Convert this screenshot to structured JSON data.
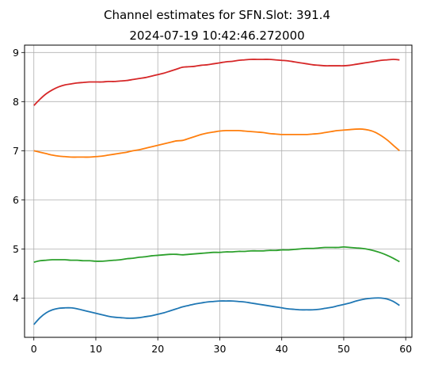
{
  "chart_data": {
    "type": "line",
    "title": "Channel estimates for SFN.Slot: 391.4",
    "subtitle": "2024-07-19 10:42:46.272000",
    "xlabel": "",
    "ylabel": "",
    "xlim": [
      -1.5,
      61
    ],
    "ylim": [
      3.2,
      9.15
    ],
    "xticks": [
      0,
      10,
      20,
      30,
      40,
      50,
      60
    ],
    "yticks": [
      4,
      5,
      6,
      7,
      8,
      9
    ],
    "grid": true,
    "legend": "none",
    "series": [
      {
        "color": "#1f77b4",
        "x": [
          0,
          1,
          2,
          3,
          4,
          5,
          6,
          7,
          8,
          9,
          10,
          11,
          12,
          13,
          14,
          15,
          16,
          17,
          18,
          19,
          20,
          21,
          22,
          23,
          24,
          25,
          26,
          27,
          28,
          29,
          30,
          31,
          32,
          33,
          34,
          35,
          36,
          37,
          38,
          39,
          40,
          41,
          42,
          43,
          44,
          45,
          46,
          47,
          48,
          49,
          50,
          51,
          52,
          53,
          54,
          55,
          56,
          57,
          58,
          59
        ],
        "y": [
          3.46,
          3.6,
          3.7,
          3.76,
          3.79,
          3.8,
          3.8,
          3.78,
          3.75,
          3.72,
          3.69,
          3.66,
          3.63,
          3.61,
          3.6,
          3.59,
          3.59,
          3.6,
          3.62,
          3.64,
          3.67,
          3.7,
          3.74,
          3.78,
          3.82,
          3.85,
          3.88,
          3.9,
          3.92,
          3.93,
          3.94,
          3.94,
          3.94,
          3.93,
          3.92,
          3.9,
          3.88,
          3.86,
          3.84,
          3.82,
          3.8,
          3.78,
          3.77,
          3.76,
          3.76,
          3.76,
          3.77,
          3.79,
          3.81,
          3.84,
          3.87,
          3.9,
          3.94,
          3.97,
          3.99,
          4.0,
          4.0,
          3.98,
          3.93,
          3.85
        ]
      },
      {
        "color": "#ff7f0e",
        "x": [
          0,
          1,
          2,
          3,
          4,
          5,
          6,
          7,
          8,
          9,
          10,
          11,
          12,
          13,
          14,
          15,
          16,
          17,
          18,
          19,
          20,
          21,
          22,
          23,
          24,
          25,
          26,
          27,
          28,
          29,
          30,
          31,
          32,
          33,
          34,
          35,
          36,
          37,
          38,
          39,
          40,
          41,
          42,
          43,
          44,
          45,
          46,
          47,
          48,
          49,
          50,
          51,
          52,
          53,
          54,
          55,
          56,
          57,
          58,
          59
        ],
        "y": [
          7.0,
          6.97,
          6.94,
          6.91,
          6.89,
          6.88,
          6.87,
          6.87,
          6.87,
          6.87,
          6.88,
          6.89,
          6.91,
          6.93,
          6.95,
          6.97,
          7.0,
          7.02,
          7.05,
          7.08,
          7.11,
          7.14,
          7.17,
          7.2,
          7.21,
          7.25,
          7.29,
          7.33,
          7.36,
          7.38,
          7.4,
          7.41,
          7.41,
          7.41,
          7.4,
          7.39,
          7.38,
          7.37,
          7.35,
          7.34,
          7.33,
          7.33,
          7.33,
          7.33,
          7.33,
          7.34,
          7.35,
          7.37,
          7.39,
          7.41,
          7.42,
          7.43,
          7.44,
          7.44,
          7.42,
          7.38,
          7.31,
          7.22,
          7.11,
          7.0
        ]
      },
      {
        "color": "#2ca02c",
        "x": [
          0,
          1,
          2,
          3,
          4,
          5,
          6,
          7,
          8,
          9,
          10,
          11,
          12,
          13,
          14,
          15,
          16,
          17,
          18,
          19,
          20,
          21,
          22,
          23,
          24,
          25,
          26,
          27,
          28,
          29,
          30,
          31,
          32,
          33,
          34,
          35,
          36,
          37,
          38,
          39,
          40,
          41,
          42,
          43,
          44,
          45,
          46,
          47,
          48,
          49,
          50,
          51,
          52,
          53,
          54,
          55,
          56,
          57,
          58,
          59
        ],
        "y": [
          4.73,
          4.76,
          4.77,
          4.78,
          4.78,
          4.78,
          4.77,
          4.77,
          4.76,
          4.76,
          4.75,
          4.75,
          4.76,
          4.77,
          4.78,
          4.8,
          4.81,
          4.83,
          4.84,
          4.86,
          4.87,
          4.88,
          4.89,
          4.89,
          4.88,
          4.89,
          4.9,
          4.91,
          4.92,
          4.93,
          4.93,
          4.94,
          4.94,
          4.95,
          4.95,
          4.96,
          4.96,
          4.96,
          4.97,
          4.97,
          4.98,
          4.98,
          4.99,
          5.0,
          5.01,
          5.01,
          5.02,
          5.03,
          5.03,
          5.03,
          5.04,
          5.03,
          5.02,
          5.01,
          4.99,
          4.96,
          4.92,
          4.87,
          4.81,
          4.74
        ]
      },
      {
        "color": "#d62728",
        "x": [
          0,
          1,
          2,
          3,
          4,
          5,
          6,
          7,
          8,
          9,
          10,
          11,
          12,
          13,
          14,
          15,
          16,
          17,
          18,
          19,
          20,
          21,
          22,
          23,
          24,
          25,
          26,
          27,
          28,
          29,
          30,
          31,
          32,
          33,
          34,
          35,
          36,
          37,
          38,
          39,
          40,
          41,
          42,
          43,
          44,
          45,
          46,
          47,
          48,
          49,
          50,
          51,
          52,
          53,
          54,
          55,
          56,
          57,
          58,
          59
        ],
        "y": [
          7.92,
          8.05,
          8.16,
          8.24,
          8.3,
          8.34,
          8.36,
          8.38,
          8.39,
          8.4,
          8.4,
          8.4,
          8.41,
          8.41,
          8.42,
          8.43,
          8.45,
          8.47,
          8.49,
          8.52,
          8.55,
          8.58,
          8.62,
          8.66,
          8.7,
          8.71,
          8.72,
          8.74,
          8.75,
          8.77,
          8.79,
          8.81,
          8.82,
          8.84,
          8.85,
          8.86,
          8.86,
          8.86,
          8.86,
          8.85,
          8.84,
          8.83,
          8.81,
          8.79,
          8.77,
          8.75,
          8.74,
          8.73,
          8.73,
          8.73,
          8.73,
          8.74,
          8.76,
          8.78,
          8.8,
          8.82,
          8.84,
          8.85,
          8.86,
          8.85
        ]
      }
    ]
  }
}
